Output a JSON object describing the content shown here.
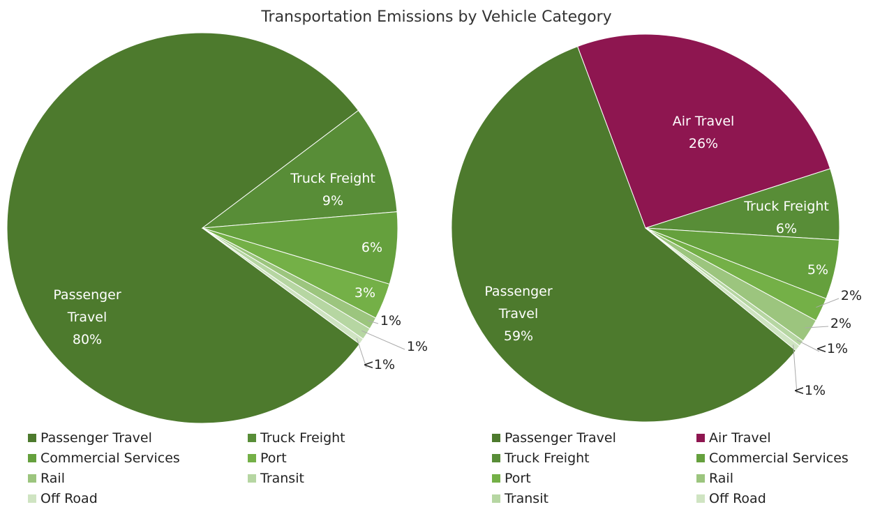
{
  "title": "Transportation Emissions by Vehicle Category",
  "chart_data": [
    {
      "type": "pie",
      "categories": [
        "Passenger Travel",
        "Truck Freight",
        "Commercial Services",
        "Port",
        "Rail",
        "Transit",
        "Off Road"
      ],
      "values": [
        80,
        9,
        6,
        3,
        1,
        1,
        0.5
      ],
      "value_labels": [
        "80%",
        "9%",
        "6%",
        "3%",
        "1%",
        "1%",
        "<1%"
      ],
      "colors": [
        "#4d7a2d",
        "#588d37",
        "#65a03d",
        "#74b047",
        "#9cc57e",
        "#b6d6a2",
        "#cfe4c2"
      ]
    },
    {
      "type": "pie",
      "categories": [
        "Passenger Travel",
        "Air Travel",
        "Truck Freight",
        "Commercial Services",
        "Port",
        "Rail",
        "Transit",
        "Off Road"
      ],
      "values": [
        59,
        26,
        6,
        5,
        2,
        2,
        0.5,
        0.5
      ],
      "value_labels": [
        "59%",
        "26%",
        "6%",
        "5%",
        "2%",
        "2%",
        "<1%",
        "<1%"
      ],
      "colors": [
        "#4d7a2d",
        "#8e1650",
        "#588d37",
        "#65a03d",
        "#74b047",
        "#9cc57e",
        "#b6d6a2",
        "#cfe4c2"
      ]
    }
  ]
}
